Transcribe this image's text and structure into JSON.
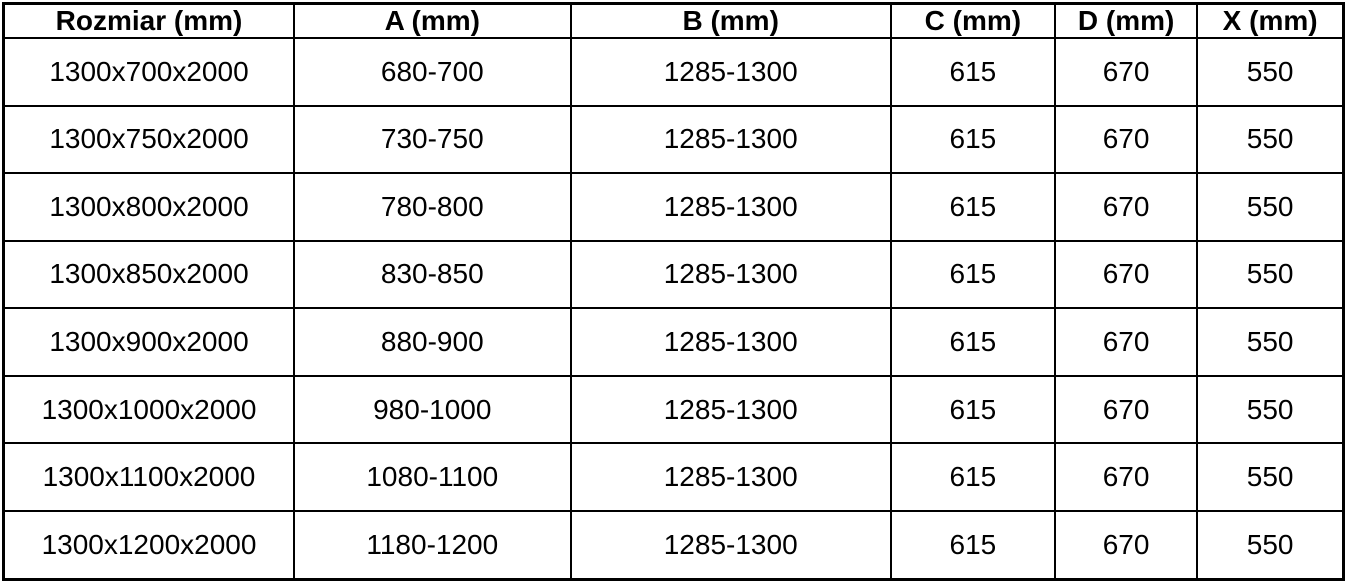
{
  "chart_data": {
    "type": "table",
    "columns": [
      "Rozmiar (mm)",
      "A (mm)",
      "B (mm)",
      "C (mm)",
      "D (mm)",
      "X (mm)"
    ],
    "rows": [
      [
        "1300x700x2000",
        "680-700",
        "1285-1300",
        "615",
        "670",
        "550"
      ],
      [
        "1300x750x2000",
        "730-750",
        "1285-1300",
        "615",
        "670",
        "550"
      ],
      [
        "1300x800x2000",
        "780-800",
        "1285-1300",
        "615",
        "670",
        "550"
      ],
      [
        "1300x850x2000",
        "830-850",
        "1285-1300",
        "615",
        "670",
        "550"
      ],
      [
        "1300x900x2000",
        "880-900",
        "1285-1300",
        "615",
        "670",
        "550"
      ],
      [
        "1300x1000x2000",
        "980-1000",
        "1285-1300",
        "615",
        "670",
        "550"
      ],
      [
        "1300x1100x2000",
        "1080-1100",
        "1285-1300",
        "615",
        "670",
        "550"
      ],
      [
        "1300x1200x2000",
        "1180-1200",
        "1285-1300",
        "615",
        "670",
        "550"
      ]
    ],
    "layout": {
      "column_width_percents": [
        21.68,
        20.64,
        23.9,
        12.25,
        10.62,
        10.91
      ],
      "header_bold": true,
      "text_align": "center"
    }
  },
  "style": {
    "border_color": "#000000",
    "text_color": "#000000",
    "background_color": "#ffffff"
  }
}
